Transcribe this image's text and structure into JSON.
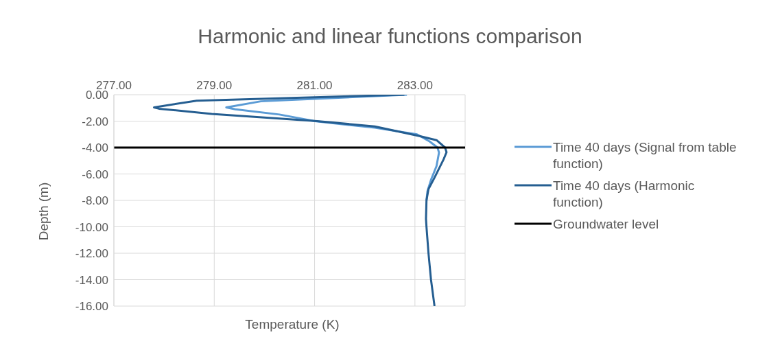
{
  "chart_data": {
    "type": "line",
    "title": "Harmonic and linear functions comparison",
    "xlabel": "Temperature (K)",
    "ylabel": "Depth (m)",
    "xlim": [
      277,
      284
    ],
    "xticks": [
      {
        "value": 277,
        "label": "277.00"
      },
      {
        "value": 279,
        "label": "279.00"
      },
      {
        "value": 281,
        "label": "281.00"
      },
      {
        "value": 283,
        "label": "283.00"
      }
    ],
    "ylim": [
      -16,
      0
    ],
    "yticks": [
      {
        "value": 0,
        "label": "0.00"
      },
      {
        "value": -2,
        "label": "-2.00"
      },
      {
        "value": -4,
        "label": "-4.00"
      },
      {
        "value": -6,
        "label": "-6.00"
      },
      {
        "value": -8,
        "label": "-8.00"
      },
      {
        "value": -10,
        "label": "-10.00"
      },
      {
        "value": -12,
        "label": "-12.00"
      },
      {
        "value": -14,
        "label": "-14.00"
      },
      {
        "value": -16,
        "label": "-16.00"
      }
    ],
    "grid": true,
    "legend": "right",
    "series": [
      {
        "name": "Time 40 days (Signal from table function)",
        "color": "#5b9bd5",
        "x": [
          282.84,
          279.93,
          279.24,
          279.42,
          280.3,
          281.0,
          282.2,
          283.04,
          283.29,
          283.45,
          283.48,
          283.43,
          283.32,
          283.25,
          283.23
        ],
        "values": [
          0,
          -0.5,
          -0.96,
          -1.1,
          -1.5,
          -2.0,
          -2.5,
          -3.0,
          -3.53,
          -4.0,
          -4.38,
          -5.4,
          -6.45,
          -7.3,
          -8.0
        ]
      },
      {
        "name": "Time 40 days (Harmonic function)",
        "color": "#255e91",
        "x": [
          282.79,
          278.65,
          277.8,
          277.9,
          278.95,
          281.05,
          282.2,
          283.09,
          283.43,
          283.6,
          283.63,
          283.57,
          283.39,
          283.27,
          283.23,
          283.22,
          283.23,
          283.27,
          283.32,
          283.39
        ],
        "values": [
          0,
          -0.45,
          -0.96,
          -1.06,
          -1.45,
          -2.0,
          -2.4,
          -3.13,
          -3.44,
          -4.0,
          -4.35,
          -4.9,
          -6.28,
          -7.14,
          -8.0,
          -9.4,
          -10.0,
          -12.0,
          -14.0,
          -16.0
        ]
      },
      {
        "name": "Groundwater level",
        "color": "#000000",
        "x": [
          277,
          284
        ],
        "values": [
          -4,
          -4
        ]
      }
    ]
  }
}
